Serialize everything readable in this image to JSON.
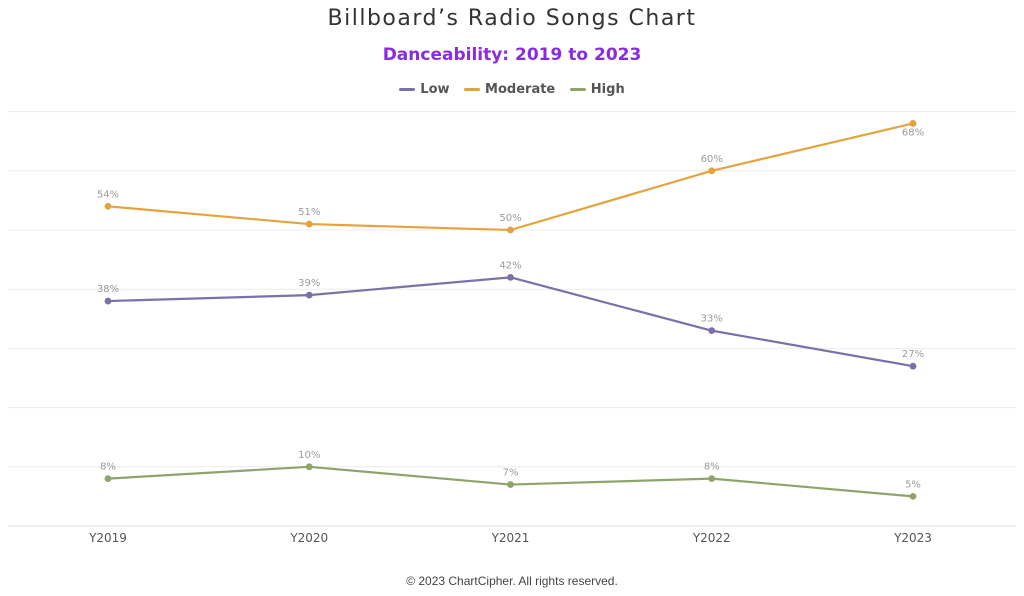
{
  "chart_data": {
    "type": "line",
    "title": "Billboard’s Radio Songs Chart",
    "subtitle": "Danceability: 2019 to 2023",
    "categories": [
      "Y2019",
      "Y2020",
      "Y2021",
      "Y2022",
      "Y2023"
    ],
    "series": [
      {
        "name": "Low",
        "color": "#7d6fa8",
        "values": [
          38,
          39,
          42,
          33,
          27
        ],
        "labels": [
          "38%",
          "39%",
          "42%",
          "33%",
          "27%"
        ]
      },
      {
        "name": "Moderate",
        "color": "#e5a33d",
        "values": [
          54,
          51,
          50,
          60,
          68
        ],
        "labels": [
          "54%",
          "51%",
          "50%",
          "60%",
          "68%"
        ]
      },
      {
        "name": "High",
        "color": "#8fa46a",
        "values": [
          8,
          10,
          7,
          8,
          5
        ],
        "labels": [
          "8%",
          "10%",
          "7%",
          "8%",
          "5%"
        ]
      }
    ],
    "ylim": [
      0,
      70
    ],
    "ygrid_step": 10,
    "grid": true,
    "legend_position": "top-center",
    "xlabel": "",
    "ylabel": ""
  },
  "footer": "© 2023 ChartCipher. All rights reserved."
}
